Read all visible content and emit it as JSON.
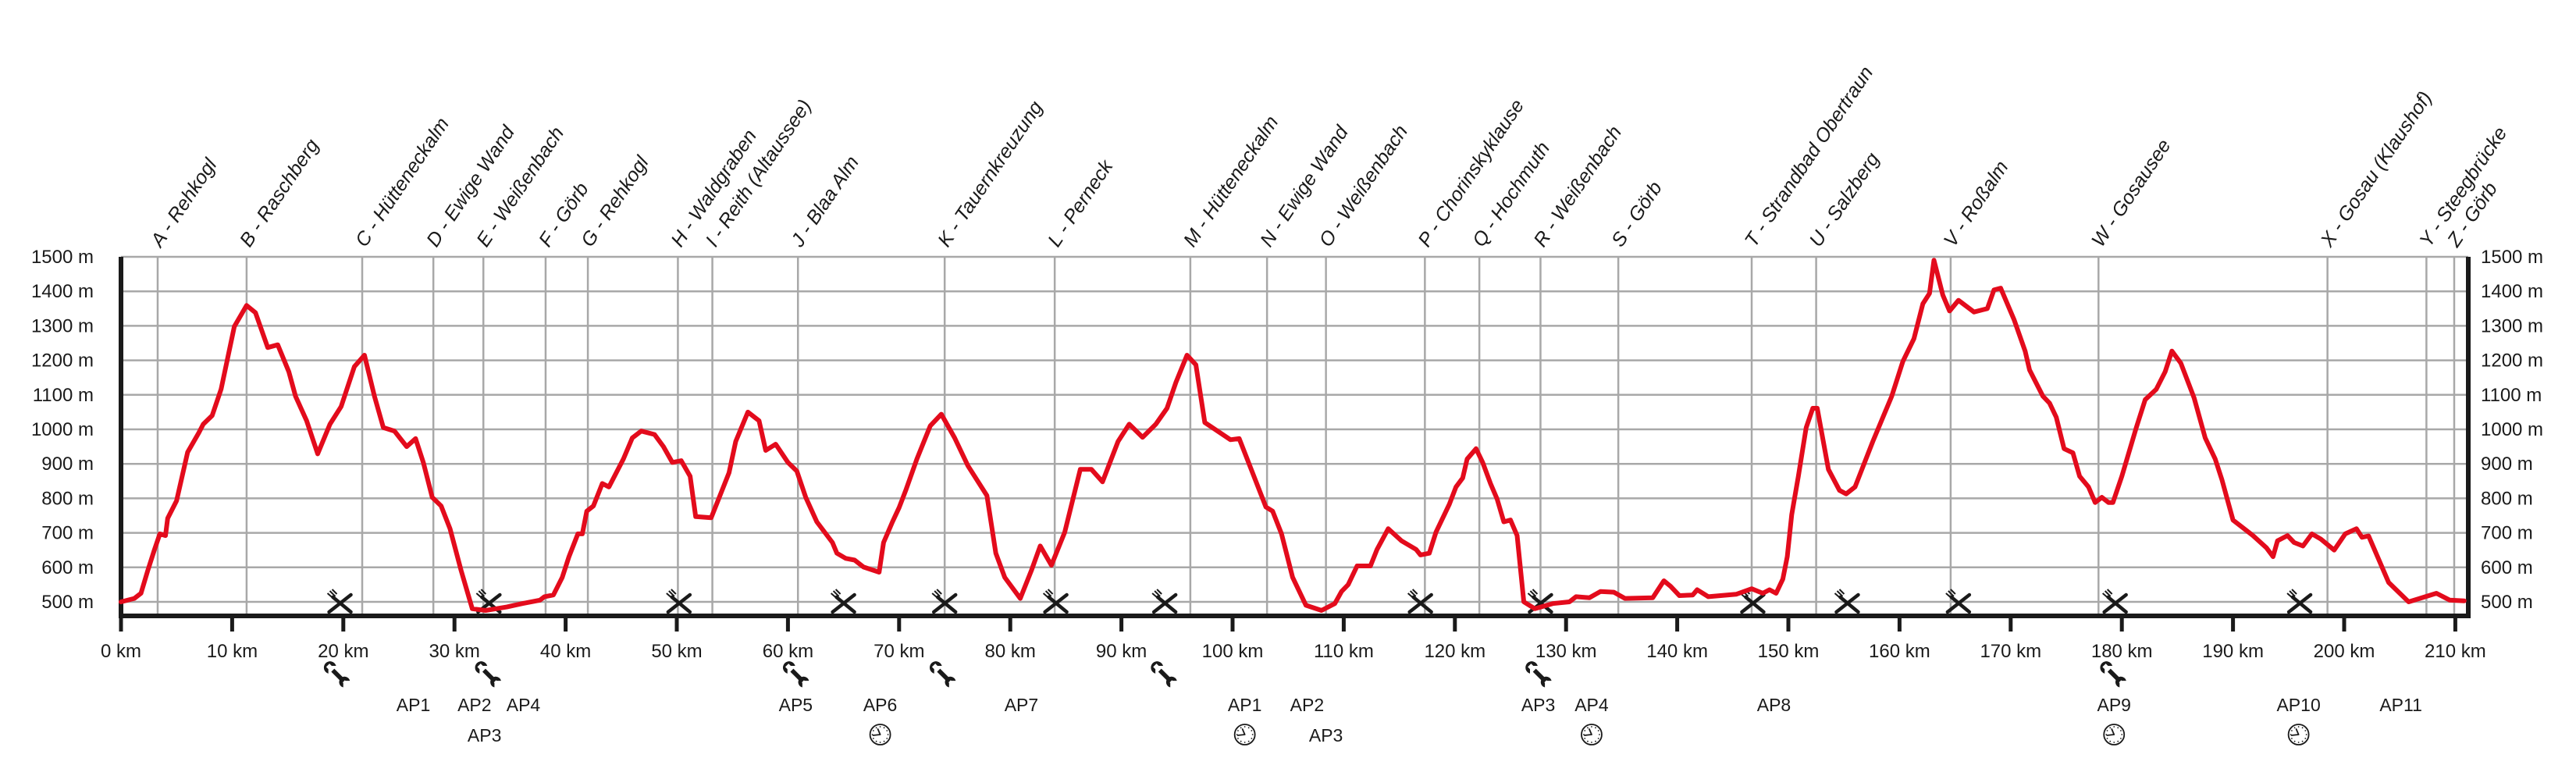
{
  "chart_data": {
    "type": "line",
    "title": "",
    "xlabel": "",
    "ylabel": "",
    "xlim": [
      0,
      211
    ],
    "ylim": [
      460,
      1500
    ],
    "grid": {
      "horizontal": true,
      "vertical_at_waypoints": true
    },
    "colors": {
      "profile": "#e30b1c",
      "grid": "#a8a8a8",
      "axis": "#1a1a1a",
      "icons": "#1a1a1a"
    },
    "x_ticks": [
      0,
      10,
      20,
      30,
      40,
      50,
      60,
      70,
      80,
      90,
      100,
      110,
      120,
      130,
      140,
      150,
      160,
      170,
      180,
      190,
      200,
      210
    ],
    "x_tick_labels": [
      "0 km",
      "10 km",
      "20 km",
      "30 km",
      "40 km",
      "50 km",
      "60 km",
      "70 km",
      "80 km",
      "90 km",
      "100 km",
      "110 km",
      "120 km",
      "130 km",
      "140 km",
      "150 km",
      "160 km",
      "170 km",
      "180 km",
      "190 km",
      "200 km",
      "210 km"
    ],
    "y_ticks": [
      500,
      600,
      700,
      800,
      900,
      1000,
      1100,
      1200,
      1300,
      1400,
      1500
    ],
    "y_tick_labels": [
      "500 m",
      "600 m",
      "700 m",
      "800 m",
      "900 m",
      "1000 m",
      "1100 m",
      "1200 m",
      "1300 m",
      "1400 m",
      "1500 m"
    ],
    "profile": [
      [
        0,
        500
      ],
      [
        1.2,
        510
      ],
      [
        1.8,
        525
      ],
      [
        2.4,
        590
      ],
      [
        3,
        650
      ],
      [
        3.5,
        697
      ],
      [
        4,
        692
      ],
      [
        4.2,
        742
      ],
      [
        5,
        793
      ],
      [
        6,
        934
      ],
      [
        7,
        990
      ],
      [
        7.4,
        1015
      ],
      [
        8.2,
        1040
      ],
      [
        9,
        1116
      ],
      [
        10.2,
        1298
      ],
      [
        11.3,
        1359
      ],
      [
        12.1,
        1338
      ],
      [
        13.2,
        1237
      ],
      [
        14.1,
        1245
      ],
      [
        15.1,
        1167
      ],
      [
        15.7,
        1096
      ],
      [
        16.7,
        1025
      ],
      [
        17.7,
        929
      ],
      [
        18.8,
        1015
      ],
      [
        19.8,
        1066
      ],
      [
        21,
        1182
      ],
      [
        21.9,
        1215
      ],
      [
        22.8,
        1096
      ],
      [
        23.6,
        1005
      ],
      [
        24.6,
        995
      ],
      [
        25.7,
        950
      ],
      [
        26.5,
        973
      ],
      [
        27.2,
        904
      ],
      [
        28,
        803
      ],
      [
        28.8,
        778
      ],
      [
        29.6,
        712
      ],
      [
        30.6,
        591
      ],
      [
        31.6,
        480
      ],
      [
        32.8,
        475
      ],
      [
        34.7,
        485
      ],
      [
        36.1,
        495
      ],
      [
        37.7,
        505
      ],
      [
        38.1,
        515
      ],
      [
        38.9,
        520
      ],
      [
        39.7,
        571
      ],
      [
        40.3,
        631
      ],
      [
        41.1,
        697
      ],
      [
        41.5,
        697
      ],
      [
        41.9,
        763
      ],
      [
        42.5,
        778
      ],
      [
        43.3,
        843
      ],
      [
        43.9,
        833
      ],
      [
        45.2,
        914
      ],
      [
        46,
        975
      ],
      [
        46.8,
        995
      ],
      [
        48,
        985
      ],
      [
        48.8,
        950
      ],
      [
        49.6,
        904
      ],
      [
        50.4,
        909
      ],
      [
        51.2,
        864
      ],
      [
        51.7,
        747
      ],
      [
        53.1,
        744
      ],
      [
        53.7,
        793
      ],
      [
        54.7,
        874
      ],
      [
        55.3,
        965
      ],
      [
        56.4,
        1050
      ],
      [
        57.4,
        1025
      ],
      [
        58,
        939
      ],
      [
        58.9,
        957
      ],
      [
        60,
        904
      ],
      [
        60.8,
        879
      ],
      [
        61.6,
        803
      ],
      [
        62.6,
        732
      ],
      [
        64,
        672
      ],
      [
        64.4,
        641
      ],
      [
        65.2,
        626
      ],
      [
        66,
        621
      ],
      [
        66.8,
        601
      ],
      [
        68.2,
        586
      ],
      [
        68.6,
        672
      ],
      [
        69.4,
        732
      ],
      [
        70,
        773
      ],
      [
        70.6,
        823
      ],
      [
        71.6,
        914
      ],
      [
        72.8,
        1010
      ],
      [
        73.8,
        1044
      ],
      [
        75,
        975
      ],
      [
        76.2,
        894
      ],
      [
        77.9,
        808
      ],
      [
        78.7,
        641
      ],
      [
        79.5,
        571
      ],
      [
        80.9,
        510
      ],
      [
        81.9,
        591
      ],
      [
        82.7,
        662
      ],
      [
        83.7,
        606
      ],
      [
        84.9,
        702
      ],
      [
        86.3,
        884
      ],
      [
        87.3,
        884
      ],
      [
        88.3,
        848
      ],
      [
        89.7,
        965
      ],
      [
        90.7,
        1015
      ],
      [
        91.9,
        977
      ],
      [
        93.1,
        1015
      ],
      [
        94.1,
        1061
      ],
      [
        94.9,
        1136
      ],
      [
        95.9,
        1215
      ],
      [
        96.7,
        1187
      ],
      [
        97.5,
        1020
      ],
      [
        99.8,
        970
      ],
      [
        100.6,
        973
      ],
      [
        101.8,
        874
      ],
      [
        103,
        775
      ],
      [
        103.6,
        763
      ],
      [
        104.4,
        697
      ],
      [
        105.4,
        571
      ],
      [
        106.6,
        490
      ],
      [
        108,
        475
      ],
      [
        109.2,
        495
      ],
      [
        109.8,
        530
      ],
      [
        110.4,
        550
      ],
      [
        111.2,
        604
      ],
      [
        112.4,
        604
      ],
      [
        113,
        652
      ],
      [
        114,
        712
      ],
      [
        115.2,
        677
      ],
      [
        116.5,
        652
      ],
      [
        116.9,
        636
      ],
      [
        117.7,
        641
      ],
      [
        118.3,
        702
      ],
      [
        119.5,
        783
      ],
      [
        120.1,
        833
      ],
      [
        120.7,
        859
      ],
      [
        121.1,
        914
      ],
      [
        121.9,
        944
      ],
      [
        122.5,
        904
      ],
      [
        123.2,
        843
      ],
      [
        123.8,
        798
      ],
      [
        124.4,
        732
      ],
      [
        125,
        737
      ],
      [
        125.6,
        692
      ],
      [
        126.2,
        500
      ],
      [
        127.2,
        480
      ],
      [
        128.8,
        495
      ],
      [
        130.3,
        500
      ],
      [
        130.9,
        515
      ],
      [
        132.1,
        512
      ],
      [
        133.1,
        530
      ],
      [
        134.3,
        528
      ],
      [
        135.3,
        510
      ],
      [
        137.8,
        512
      ],
      [
        138.8,
        561
      ],
      [
        139.4,
        545
      ],
      [
        140.2,
        518
      ],
      [
        141.4,
        520
      ],
      [
        141.8,
        535
      ],
      [
        142.8,
        515
      ],
      [
        145.3,
        522
      ],
      [
        146.7,
        538
      ],
      [
        147.7,
        525
      ],
      [
        148.3,
        535
      ],
      [
        148.9,
        525
      ],
      [
        149.5,
        566
      ],
      [
        149.9,
        631
      ],
      [
        150.3,
        753
      ],
      [
        150.9,
        864
      ],
      [
        151.6,
        1005
      ],
      [
        152.2,
        1061
      ],
      [
        152.6,
        1061
      ],
      [
        153.6,
        884
      ],
      [
        154.6,
        823
      ],
      [
        155.2,
        813
      ],
      [
        156,
        833
      ],
      [
        157.6,
        965
      ],
      [
        159.3,
        1096
      ],
      [
        160.3,
        1197
      ],
      [
        161.3,
        1263
      ],
      [
        162.1,
        1364
      ],
      [
        162.7,
        1394
      ],
      [
        163.1,
        1490
      ],
      [
        163.9,
        1389
      ],
      [
        164.5,
        1343
      ],
      [
        165.3,
        1374
      ],
      [
        166.7,
        1340
      ],
      [
        167.9,
        1350
      ],
      [
        168.5,
        1404
      ],
      [
        169.1,
        1409
      ],
      [
        170.3,
        1318
      ],
      [
        171.3,
        1227
      ],
      [
        171.7,
        1172
      ],
      [
        172.9,
        1096
      ],
      [
        173.5,
        1076
      ],
      [
        174.1,
        1035
      ],
      [
        174.8,
        944
      ],
      [
        175.6,
        932
      ],
      [
        176.2,
        864
      ],
      [
        177,
        833
      ],
      [
        177.6,
        788
      ],
      [
        178.2,
        803
      ],
      [
        178.8,
        788
      ],
      [
        179.2,
        788
      ],
      [
        180,
        864
      ],
      [
        181.3,
        1005
      ],
      [
        182.1,
        1086
      ],
      [
        183.1,
        1116
      ],
      [
        183.9,
        1167
      ],
      [
        184.5,
        1227
      ],
      [
        185.3,
        1192
      ],
      [
        186.5,
        1091
      ],
      [
        187.5,
        975
      ],
      [
        188.4,
        914
      ],
      [
        189,
        854
      ],
      [
        190,
        737
      ],
      [
        191.2,
        707
      ],
      [
        191.8,
        692
      ],
      [
        193,
        657
      ],
      [
        193.6,
        631
      ],
      [
        194,
        677
      ],
      [
        194.9,
        692
      ],
      [
        195.5,
        672
      ],
      [
        196.3,
        662
      ],
      [
        197.1,
        697
      ],
      [
        197.9,
        682
      ],
      [
        199.1,
        650
      ],
      [
        200.1,
        697
      ],
      [
        201.1,
        712
      ],
      [
        201.6,
        687
      ],
      [
        202.2,
        691
      ],
      [
        204,
        556
      ],
      [
        205.8,
        500
      ],
      [
        206.8,
        510
      ],
      [
        208.3,
        525
      ],
      [
        209.5,
        505
      ],
      [
        210.8,
        503
      ]
    ],
    "waypoints": [
      {
        "km": 3.3,
        "label": "A - Rehkogl"
      },
      {
        "km": 11.3,
        "label": "B - Raschberg"
      },
      {
        "km": 21.7,
        "label": "C - Hütteneckalm"
      },
      {
        "km": 28.1,
        "label": "D - Ewige Wand"
      },
      {
        "km": 32.6,
        "label": "E - Weißenbach"
      },
      {
        "km": 38.2,
        "label": "F - Görb"
      },
      {
        "km": 42.0,
        "label": "G - Rehkogl"
      },
      {
        "km": 50.1,
        "label": "H - Waldgraben"
      },
      {
        "km": 53.2,
        "label": "I - Reith (Altaussee)"
      },
      {
        "km": 60.9,
        "label": "J - Blaa Alm"
      },
      {
        "km": 74.1,
        "label": "K - Tauernkreuzung"
      },
      {
        "km": 84.0,
        "label": "L - Perneck"
      },
      {
        "km": 96.2,
        "label": "M - Hütteneckalm"
      },
      {
        "km": 103.1,
        "label": "N - Ewige Wand"
      },
      {
        "km": 108.4,
        "label": "O - Weißenbach"
      },
      {
        "km": 117.3,
        "label": "P - Chorinskyklause"
      },
      {
        "km": 122.2,
        "label": "Q - Hochmuth"
      },
      {
        "km": 127.7,
        "label": "R - Weißenbach"
      },
      {
        "km": 134.7,
        "label": "S - Görb"
      },
      {
        "km": 146.7,
        "label": "T - Strandbad Obertraun"
      },
      {
        "km": 152.5,
        "label": "U - Salzberg"
      },
      {
        "km": 164.6,
        "label": "V - Roßalm"
      },
      {
        "km": 177.9,
        "label": "W - Gosausee"
      },
      {
        "km": 198.5,
        "label": "X - Gosau (Klaushof)"
      },
      {
        "km": 207.4,
        "label": "Y - Steegbrücke"
      },
      {
        "km": 209.9,
        "label": "Z - Görb"
      }
    ],
    "food_icon": "fork-knife-icon",
    "food_km": [
      19.7,
      33.1,
      50.2,
      65.0,
      74.1,
      84.1,
      93.9,
      116.9,
      127.7,
      146.8,
      155.3,
      165.3,
      179.4,
      196.0
    ],
    "service_icon": "wrench-icon",
    "service_km": [
      19.5,
      33.1,
      60.8,
      74.0,
      93.9,
      127.6,
      179.3
    ],
    "aid_stations": [
      {
        "label": "AP1",
        "km": 26.3
      },
      {
        "label": "AP2",
        "km": 31.8
      },
      {
        "label": "AP3",
        "km": 32.7
      },
      {
        "label": "AP4",
        "km": 36.2
      },
      {
        "label": "AP5",
        "km": 60.7
      },
      {
        "label": "AP6",
        "km": 68.3
      },
      {
        "label": "AP7",
        "km": 81.0
      },
      {
        "label": "AP1",
        "km": 101.1
      },
      {
        "label": "AP2",
        "km": 106.7
      },
      {
        "label": "AP3",
        "km": 108.4
      },
      {
        "label": "AP3",
        "km": 127.5
      },
      {
        "label": "AP4",
        "km": 132.3
      },
      {
        "label": "AP8",
        "km": 148.7
      },
      {
        "label": "AP9",
        "km": 179.3
      },
      {
        "label": "AP10",
        "km": 195.9
      },
      {
        "label": "AP11",
        "km": 205.1
      }
    ],
    "clock_icon": "clock-icon",
    "clock_km": [
      68.3,
      101.1,
      132.3,
      179.3,
      195.9
    ]
  }
}
